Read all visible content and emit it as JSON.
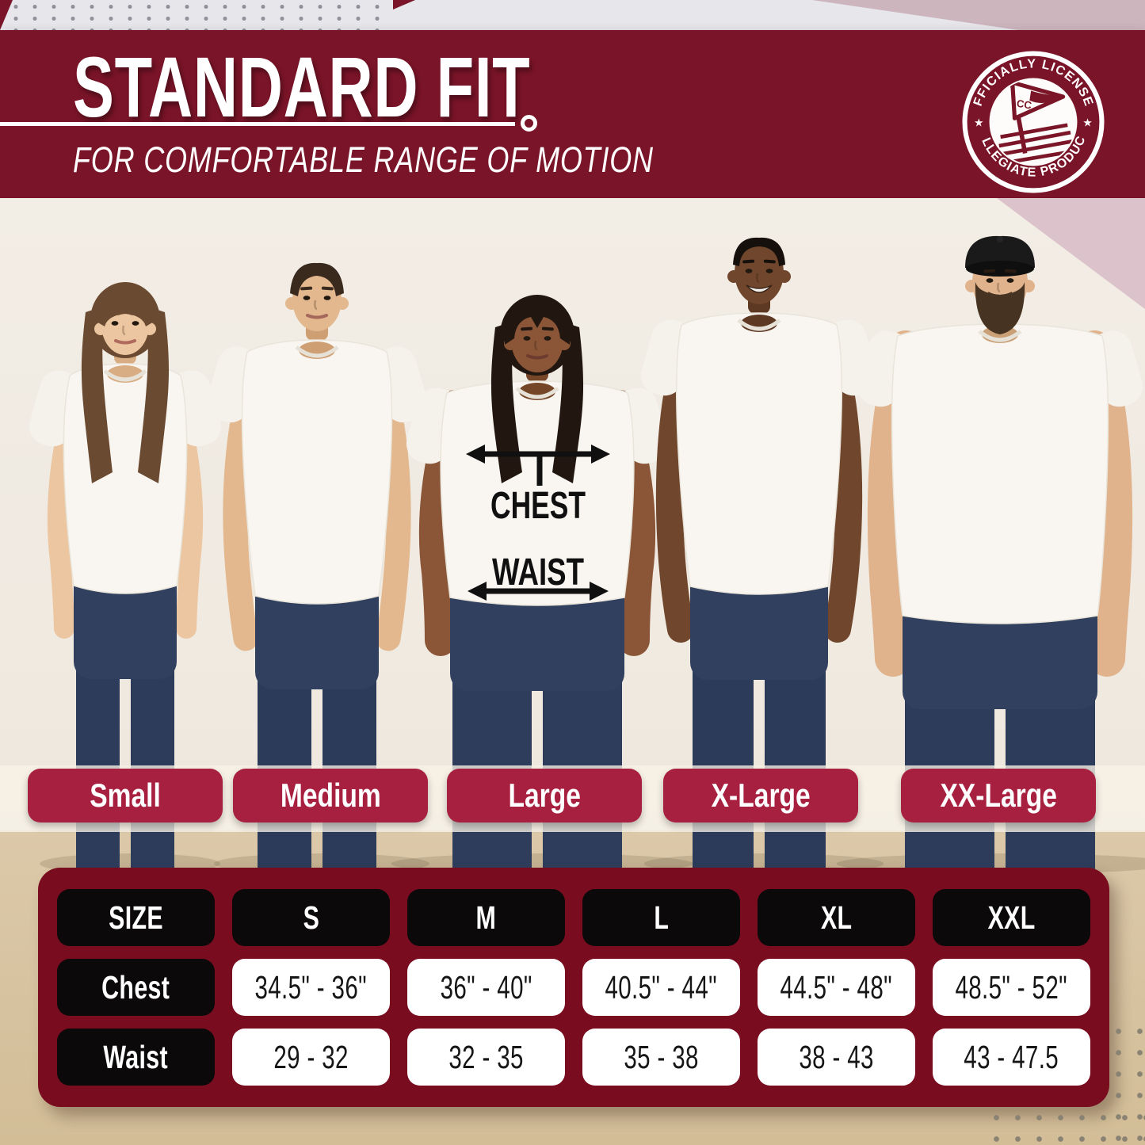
{
  "header": {
    "title": "STANDARD FIT",
    "subtitle": "FOR COMFORTABLE RANGE OF MOTION",
    "badge": {
      "arc_top": "OFFICIALLY LICENSED",
      "arc_bottom": "COLLEGIATE PRODUCTS",
      "monogram": "CC"
    }
  },
  "fit_annotation": {
    "chest": "CHEST",
    "waist": "WAIST"
  },
  "size_labels": [
    "Small",
    "Medium",
    "Large",
    "X-Large",
    "XX-Large"
  ],
  "size_table": {
    "columns": [
      "SIZE",
      "S",
      "M",
      "L",
      "XL",
      "XXL"
    ],
    "rows": [
      {
        "label": "Chest",
        "values": [
          "34.5\" - 36\"",
          "36\" - 40\"",
          "40.5\" - 44\"",
          "44.5\" - 48\"",
          "48.5\" - 52\""
        ]
      },
      {
        "label": "Waist",
        "values": [
          "29 - 32",
          "32 - 35",
          "35 - 38",
          "38 - 43",
          "43 - 47.5"
        ]
      }
    ]
  },
  "colors": {
    "banner": "#7a1428",
    "pill_red": "#a82040",
    "table_bg": "#7a0c20",
    "pill_black": "#0b0909",
    "accent_pink": "#dcc2cb"
  }
}
